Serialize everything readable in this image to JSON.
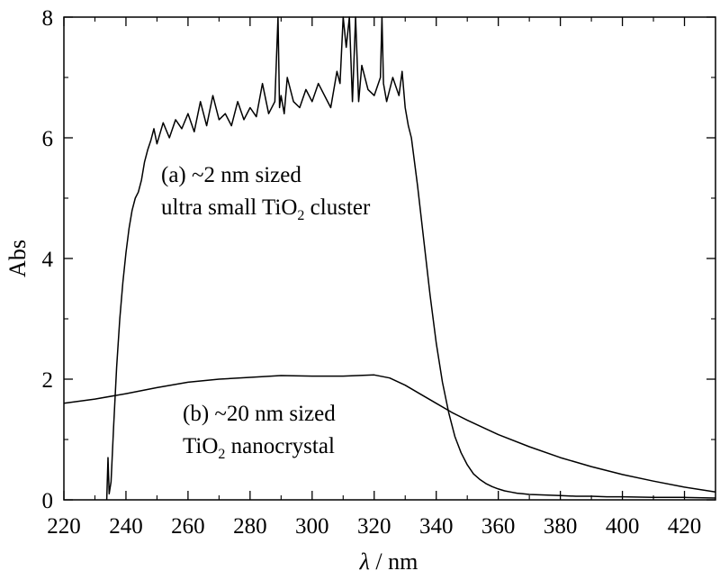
{
  "chart_data": {
    "type": "line",
    "xlabel_symbol": "λ",
    "xlabel_rest": " / nm",
    "ylabel": "Abs",
    "xlim": [
      220,
      430
    ],
    "ylim": [
      0,
      8
    ],
    "x_ticks": [
      220,
      240,
      260,
      280,
      300,
      320,
      340,
      360,
      380,
      400,
      420
    ],
    "y_ticks": [
      0,
      2,
      4,
      6,
      8
    ],
    "grid": false,
    "legend": "none",
    "series": [
      {
        "key": "a",
        "x": [
          233.8,
          234.2,
          234.6,
          235.2,
          236,
          237,
          238,
          239,
          240,
          241,
          242,
          243,
          244,
          245,
          246,
          247,
          248,
          249,
          250,
          252,
          254,
          256,
          258,
          260,
          262,
          264,
          266,
          268,
          270,
          272,
          274,
          276,
          278,
          280,
          282,
          284,
          286,
          288,
          289,
          289.5,
          290,
          291,
          292,
          294,
          296,
          298,
          300,
          302,
          304,
          306,
          308,
          309,
          310,
          311,
          312,
          313,
          314,
          315,
          316,
          318,
          320,
          322,
          322.5,
          323,
          324,
          326,
          328,
          329,
          330,
          331,
          332,
          334,
          336,
          338,
          340,
          342,
          344,
          346,
          348,
          350,
          352,
          354,
          356,
          358,
          360,
          362,
          364,
          366,
          368,
          370,
          375,
          380,
          385,
          390,
          395,
          400,
          410,
          420,
          430
        ],
        "y": [
          0,
          0.7,
          0.1,
          0.3,
          1.2,
          2.2,
          3.0,
          3.6,
          4.1,
          4.5,
          4.8,
          5.0,
          5.1,
          5.3,
          5.6,
          5.8,
          5.95,
          6.15,
          5.9,
          6.25,
          6.0,
          6.3,
          6.15,
          6.4,
          6.1,
          6.6,
          6.2,
          6.7,
          6.3,
          6.4,
          6.2,
          6.6,
          6.3,
          6.5,
          6.35,
          6.9,
          6.4,
          6.6,
          8.0,
          6.5,
          6.7,
          6.4,
          7.0,
          6.6,
          6.5,
          6.8,
          6.6,
          6.9,
          6.7,
          6.5,
          7.1,
          6.9,
          8.0,
          7.5,
          8.0,
          6.6,
          8.0,
          6.6,
          7.2,
          6.8,
          6.7,
          7.0,
          8.0,
          6.9,
          6.6,
          7.0,
          6.7,
          7.1,
          6.5,
          6.2,
          6.0,
          5.2,
          4.3,
          3.4,
          2.6,
          1.95,
          1.45,
          1.05,
          0.78,
          0.58,
          0.43,
          0.34,
          0.27,
          0.22,
          0.18,
          0.15,
          0.13,
          0.11,
          0.1,
          0.09,
          0.08,
          0.07,
          0.06,
          0.06,
          0.05,
          0.05,
          0.04,
          0.04,
          0.03
        ]
      },
      {
        "key": "b",
        "x": [
          220,
          230,
          240,
          250,
          260,
          270,
          280,
          290,
          300,
          310,
          320,
          325,
          330,
          335,
          340,
          345,
          350,
          355,
          360,
          370,
          380,
          390,
          400,
          410,
          420,
          430
        ],
        "y": [
          1.6,
          1.67,
          1.76,
          1.86,
          1.95,
          2.0,
          2.03,
          2.06,
          2.05,
          2.05,
          2.07,
          2.02,
          1.9,
          1.75,
          1.6,
          1.45,
          1.32,
          1.2,
          1.08,
          0.88,
          0.7,
          0.55,
          0.42,
          0.31,
          0.21,
          0.13
        ]
      }
    ]
  },
  "annotations": {
    "a_line1": "(a) ~2 nm sized",
    "a_line2_pre": "ultra small TiO",
    "a_line2_sub": "2",
    "a_line2_post": " cluster",
    "b_line1": "(b) ~20 nm sized",
    "b_line2_pre": "TiO",
    "b_line2_sub": "2",
    "b_line2_post": " nanocrystal"
  }
}
